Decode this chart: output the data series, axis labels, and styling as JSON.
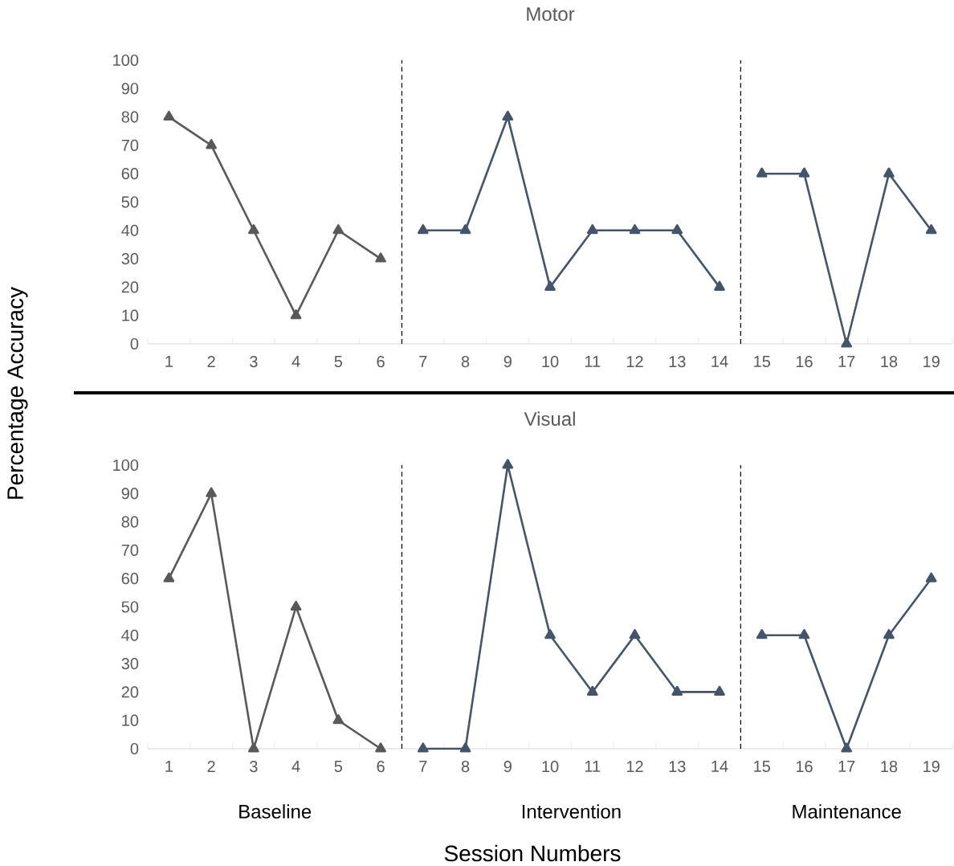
{
  "chart_data": [
    {
      "type": "line",
      "title": "Motor",
      "ylabel": "Percentage Accuracy",
      "xlim": [
        0.5,
        19.5
      ],
      "xticks": [
        1,
        2,
        3,
        4,
        5,
        6,
        7,
        8,
        9,
        10,
        11,
        12,
        13,
        14,
        15,
        16,
        17,
        18,
        19
      ],
      "ylim": [
        0,
        100
      ],
      "yticks": [
        0,
        10,
        20,
        30,
        40,
        50,
        60,
        70,
        80,
        90,
        100
      ],
      "marker": "triangle",
      "series": [
        {
          "color": "#595959",
          "x": [
            1,
            2,
            3,
            4,
            5,
            6
          ],
          "values": [
            80,
            70,
            40,
            10,
            40,
            30
          ]
        },
        {
          "color": "#44546a",
          "x": [
            7,
            8,
            9,
            10,
            11,
            12,
            13,
            14
          ],
          "values": [
            40,
            40,
            80,
            20,
            40,
            40,
            40,
            20
          ]
        },
        {
          "color": "#44546a",
          "x": [
            15,
            16,
            17,
            18,
            19
          ],
          "values": [
            60,
            60,
            0,
            60,
            40
          ]
        }
      ],
      "ref_lines": [
        {
          "axis": "x",
          "value": 6.5,
          "color": "#000000",
          "line_style": "dashed"
        },
        {
          "axis": "x",
          "value": 14.5,
          "color": "#000000",
          "line_style": "dashed"
        }
      ]
    },
    {
      "type": "line",
      "title": "Visual",
      "xlabel": "Session Numbers",
      "xlim": [
        0.5,
        19.5
      ],
      "xticks": [
        1,
        2,
        3,
        4,
        5,
        6,
        7,
        8,
        9,
        10,
        11,
        12,
        13,
        14,
        15,
        16,
        17,
        18,
        19
      ],
      "ylim": [
        0,
        100
      ],
      "yticks": [
        0,
        10,
        20,
        30,
        40,
        50,
        60,
        70,
        80,
        90,
        100
      ],
      "marker": "triangle",
      "series": [
        {
          "color": "#595959",
          "x": [
            1,
            2,
            3,
            4,
            5,
            6
          ],
          "values": [
            60,
            90,
            0,
            50,
            10,
            0
          ]
        },
        {
          "color": "#44546a",
          "x": [
            7,
            8,
            9,
            10,
            11,
            12,
            13,
            14
          ],
          "values": [
            0,
            0,
            100,
            40,
            20,
            40,
            20,
            20
          ]
        },
        {
          "color": "#44546a",
          "x": [
            15,
            16,
            17,
            18,
            19
          ],
          "values": [
            40,
            40,
            0,
            40,
            60
          ]
        }
      ],
      "ref_lines": [
        {
          "axis": "x",
          "value": 6.5,
          "color": "#000000",
          "line_style": "dashed"
        },
        {
          "axis": "x",
          "value": 14.5,
          "color": "#000000",
          "line_style": "dashed"
        }
      ],
      "annotations": [
        "Baseline",
        "Intervention",
        "Maintenance"
      ]
    }
  ]
}
